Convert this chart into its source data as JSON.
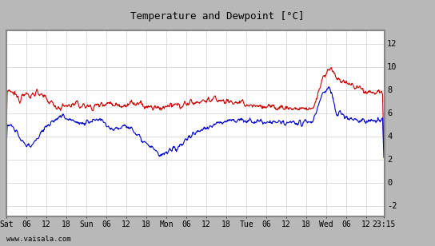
{
  "title": "Temperature and Dewpoint [°C]",
  "ylabel_right_ticks": [
    -2,
    0,
    2,
    4,
    6,
    8,
    10,
    12
  ],
  "ylim": [
    -2.8,
    13.2
  ],
  "xlim_hours": [
    0,
    113.25
  ],
  "x_tick_labels": [
    "Sat",
    "06",
    "12",
    "18",
    "Sun",
    "06",
    "12",
    "18",
    "Mon",
    "06",
    "12",
    "18",
    "Tue",
    "06",
    "12",
    "18",
    "Wed",
    "06",
    "12",
    "23:15"
  ],
  "x_tick_positions": [
    0,
    6,
    12,
    18,
    24,
    30,
    36,
    42,
    48,
    54,
    60,
    66,
    72,
    78,
    84,
    90,
    96,
    102,
    108,
    113.25
  ],
  "grid_color": "#d0d0d0",
  "bg_color": "#ffffff",
  "outer_bg": "#b8b8b8",
  "temp_color": "#cc0000",
  "dewp_color": "#0000cc",
  "watermark": "www.vaisala.com",
  "line_width": 0.8,
  "title_fontsize": 9
}
